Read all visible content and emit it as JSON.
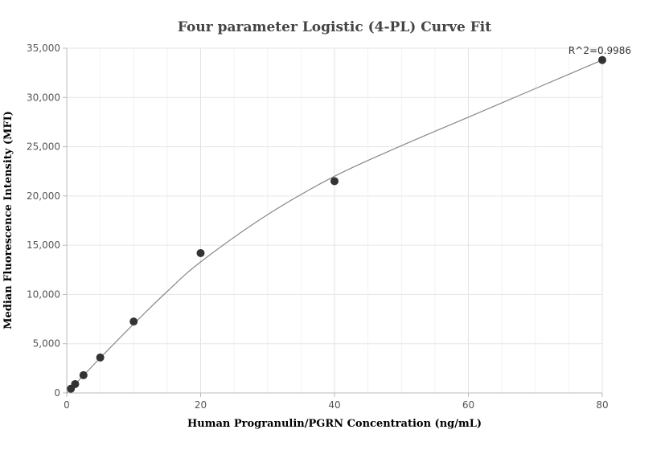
{
  "chart_data": {
    "type": "scatter",
    "title": "Four parameter Logistic (4-PL) Curve Fit",
    "xlabel": "Human Progranulin/PGRN  Concentration (ng/mL)",
    "ylabel": "Median Fluorescence Intensity (MFI)",
    "xlim": [
      0,
      80
    ],
    "ylim": [
      0,
      35000
    ],
    "x_ticks": [
      0,
      20,
      40,
      60,
      80
    ],
    "x_tick_labels": [
      "0",
      "20",
      "40",
      "60",
      "80"
    ],
    "y_ticks": [
      0,
      5000,
      10000,
      15000,
      20000,
      25000,
      30000,
      35000
    ],
    "y_tick_labels": [
      "0",
      "5,000",
      "10,000",
      "15,000",
      "20,000",
      "25,000",
      "30,000",
      "35,000"
    ],
    "grid": true,
    "points": [
      {
        "x": 0.625,
        "y": 430
      },
      {
        "x": 1.25,
        "y": 900
      },
      {
        "x": 2.5,
        "y": 1800
      },
      {
        "x": 5,
        "y": 3600
      },
      {
        "x": 10,
        "y": 7250
      },
      {
        "x": 20,
        "y": 14200
      },
      {
        "x": 40,
        "y": 21500
      },
      {
        "x": 80,
        "y": 33800
      }
    ],
    "fit_curve": {
      "model": "4PL",
      "points": [
        {
          "x": 0,
          "y": 0
        },
        {
          "x": 5,
          "y": 3550
        },
        {
          "x": 10,
          "y": 7000
        },
        {
          "x": 15,
          "y": 10300
        },
        {
          "x": 20,
          "y": 13300
        },
        {
          "x": 30,
          "y": 18100
        },
        {
          "x": 40,
          "y": 22000
        },
        {
          "x": 50,
          "y": 25100
        },
        {
          "x": 60,
          "y": 28000
        },
        {
          "x": 70,
          "y": 30900
        },
        {
          "x": 80,
          "y": 33800
        }
      ]
    },
    "annotation": "R^2=0.9986",
    "colors": {
      "point": "#333333",
      "curve": "#888888",
      "grid": "#e6e6e6",
      "axis": "#bbbbbb"
    }
  }
}
